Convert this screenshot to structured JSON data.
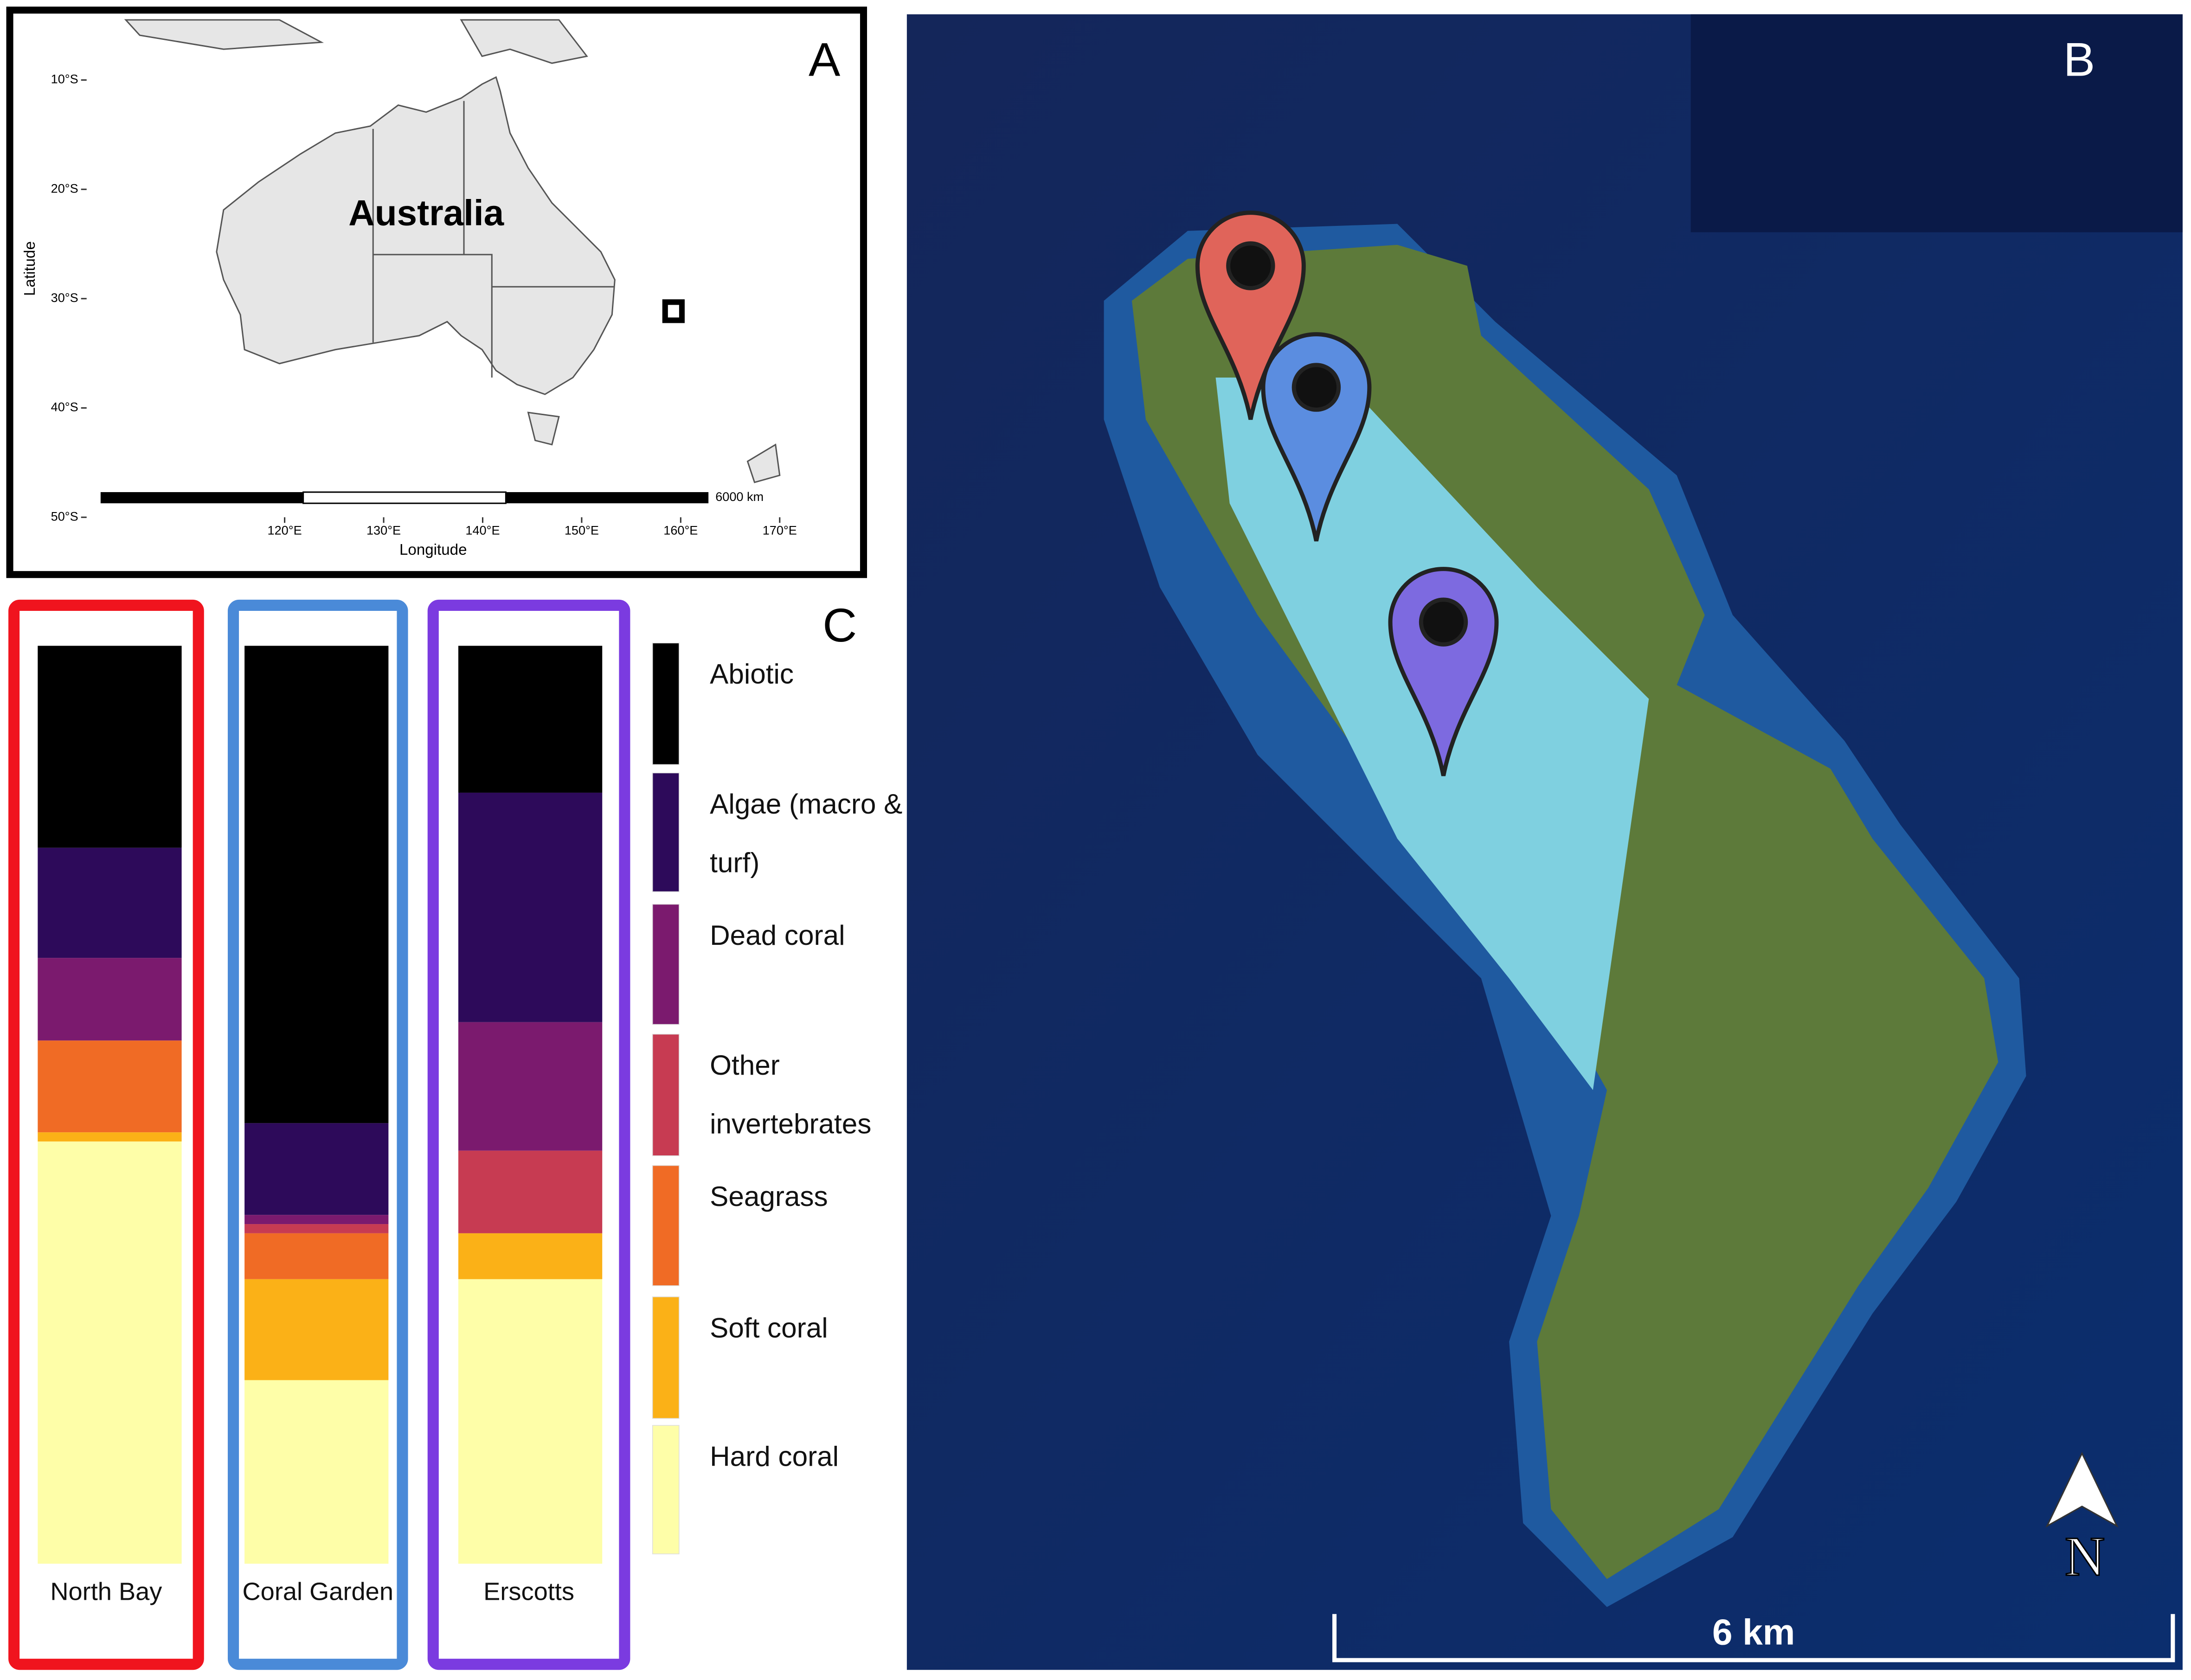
{
  "panel_labels": [
    "A",
    "B",
    "C"
  ],
  "chart_data": [
    {
      "type": "map",
      "label": "Australia",
      "xlabel": "Longitude",
      "ylabel": "Latitude",
      "scale_label": "6000 km",
      "xlim": [
        100,
        170
      ],
      "ylim": [
        -50,
        -4.5
      ],
      "xticks": [
        {
          "value": 120,
          "label": "120°E"
        },
        {
          "value": 130,
          "label": "130°E"
        },
        {
          "value": 140,
          "label": "140°E"
        },
        {
          "value": 150,
          "label": "150°E"
        },
        {
          "value": 160,
          "label": "160°E"
        },
        {
          "value": 170,
          "label": "170°E"
        }
      ],
      "yticks": [
        {
          "value": -10,
          "label": "10°S"
        },
        {
          "value": -20,
          "label": "20°S"
        },
        {
          "value": -30,
          "label": "30°S"
        },
        {
          "value": -40,
          "label": "40°S"
        },
        {
          "value": -50,
          "label": "50°S"
        }
      ]
    },
    {
      "type": "bar",
      "stacked": true,
      "categories": [
        "North Bay",
        "Coral Garden",
        "Erscotts"
      ],
      "category_colors": [
        "#f0141e",
        "#4a8ad8",
        "#7b3be0"
      ],
      "series": [
        {
          "name": "Abiotic",
          "color": "#000000",
          "values": [
            22,
            52,
            16
          ]
        },
        {
          "name": "Algae (macro & turf)",
          "color": "#2d0a5a",
          "values": [
            12,
            10,
            25
          ]
        },
        {
          "name": "Dead coral",
          "color": "#7b1a6e",
          "values": [
            9,
            1,
            14
          ]
        },
        {
          "name": "Other invertebrates",
          "color": "#c73b52",
          "values": [
            0,
            1,
            9
          ]
        },
        {
          "name": "Seagrass",
          "color": "#f06b25",
          "values": [
            10,
            5,
            0
          ]
        },
        {
          "name": "Soft coral",
          "color": "#fbb117",
          "values": [
            1,
            11,
            5
          ]
        },
        {
          "name": "Hard coral",
          "color": "#fefea8",
          "values": [
            46,
            20,
            31
          ]
        }
      ]
    }
  ],
  "photo": {
    "north_label": "N",
    "scale_label": "6 km"
  }
}
